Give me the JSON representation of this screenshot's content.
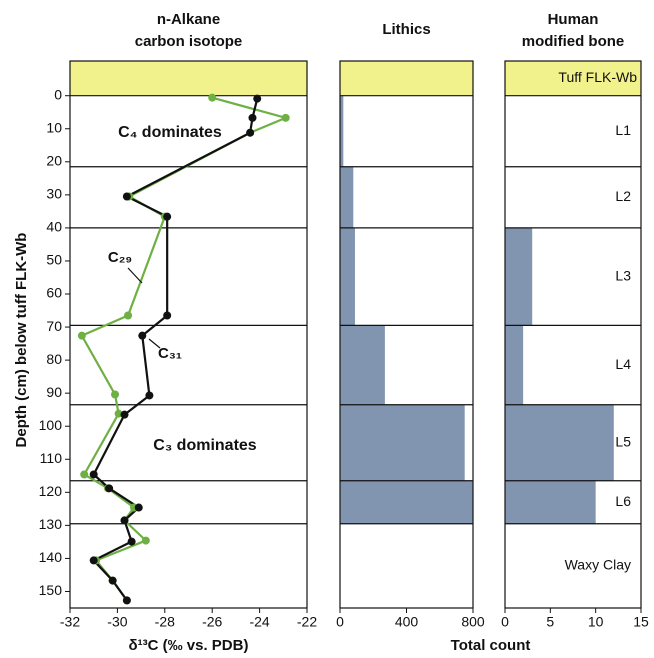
{
  "layer_boundaries": [
    0,
    21.5,
    40,
    69.5,
    93.5,
    116.5,
    129.5
  ],
  "chart_data": [
    {
      "type": "line",
      "title": [
        "n-Alkane",
        "carbon isotope"
      ],
      "xlabel": "δ¹³C (‰ vs. PDB)",
      "ylabel": "Depth (cm) below tuff FLK-Wb",
      "xlim": [
        -32,
        -22
      ],
      "xticks": [
        -32,
        -30,
        -28,
        -26,
        -24,
        -22
      ],
      "ylim": [
        -10.5,
        155
      ],
      "y_inverted": true,
      "yticks": [
        0,
        10,
        20,
        30,
        40,
        50,
        60,
        70,
        80,
        90,
        100,
        110,
        120,
        130,
        140,
        150
      ],
      "series": [
        {
          "name": "C₂₉",
          "color": "#6eb043",
          "x": [
            -26.0,
            -22.9,
            -24.4,
            -29.5,
            -28.0,
            -29.55,
            -31.5,
            -30.1,
            -29.95,
            -31.4,
            -30.4,
            -29.3,
            -29.7,
            -28.8,
            -30.9,
            -30.2,
            -29.6
          ],
          "y": [
            0.6,
            6.7,
            11.2,
            30.5,
            36.6,
            66.5,
            72.6,
            90.4,
            96.2,
            114.6,
            118.8,
            124.6,
            128.5,
            134.6,
            140.6,
            146.7,
            152.7
          ]
        },
        {
          "name": "C₃₁",
          "color": "#111111",
          "x": [
            -24.1,
            -24.3,
            -24.4,
            -29.6,
            -27.9,
            -27.9,
            -28.95,
            -28.65,
            -29.7,
            -31.0,
            -30.35,
            -29.1,
            -29.7,
            -29.4,
            -31.0,
            -30.2,
            -29.6
          ],
          "y": [
            0.9,
            6.7,
            11.2,
            30.5,
            36.6,
            66.5,
            72.6,
            90.7,
            96.5,
            114.6,
            118.8,
            124.6,
            128.5,
            134.9,
            140.6,
            146.7,
            152.7
          ]
        }
      ],
      "annotations": [
        "C₄ dominates",
        "C₃ dominates"
      ]
    },
    {
      "type": "hbar",
      "title": [
        "Lithics"
      ],
      "xlim": [
        0,
        800
      ],
      "xticks": [
        0,
        400,
        800
      ],
      "color": "#8295b0",
      "values": [
        20,
        80,
        90,
        270,
        750,
        800,
        0
      ]
    },
    {
      "type": "hbar",
      "title": [
        "Human",
        "modified bone"
      ],
      "xlim": [
        0,
        15
      ],
      "xticks": [
        0,
        5,
        10,
        15
      ],
      "color": "#8295b0",
      "values": [
        0,
        0,
        3,
        2,
        12,
        10,
        0
      ],
      "band_label": "Tuff FLK-Wb",
      "categories": [
        "L1",
        "L2",
        "L3",
        "L4",
        "L5",
        "L6",
        "Waxy Clay"
      ],
      "xlabel": "Total count"
    }
  ]
}
